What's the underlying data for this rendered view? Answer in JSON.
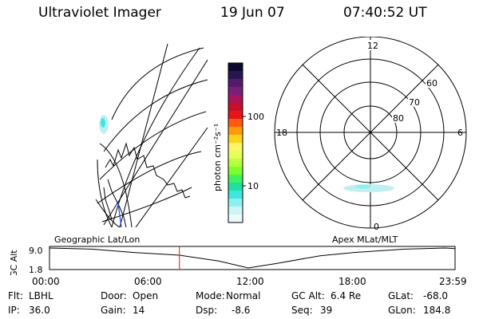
{
  "header": {
    "instrument": "Ultraviolet Imager",
    "date": "19 Jun 07",
    "time": "07:40:52 UT"
  },
  "colorbar": {
    "unit_label": "photon cm⁻²s⁻¹",
    "tick_labels": [
      "100",
      "10"
    ],
    "tick_values": [
      100,
      10
    ],
    "colors": [
      "#0b0a2e",
      "#2b1450",
      "#541a6b",
      "#7a1f78",
      "#a8155a",
      "#c80f2a",
      "#e8141a",
      "#ff5a10",
      "#ff9a0a",
      "#ffd21c",
      "#fff56a",
      "#e6ff58",
      "#b8ff3c",
      "#7cff2c",
      "#3ef25e",
      "#1fe0a2",
      "#3fe6de",
      "#8ef0f0",
      "#cdf6f6",
      "#eefafa"
    ]
  },
  "polar_plot": {
    "mlt_labels": {
      "top": "12",
      "left": "18",
      "right": "6",
      "bottom": "0"
    },
    "lat_labels": [
      "60",
      "70",
      "80"
    ],
    "emission_color": "#bfeff0"
  },
  "timeline": {
    "left_label": "Geographic Lat/Lon",
    "right_label": "Apex MLat/MLT",
    "ylabel": "GC Alt",
    "ytick_labels": [
      "9.0",
      "1.8"
    ],
    "xtick_labels": [
      "00:00",
      "06:00",
      "12:00",
      "18:00",
      "23:59"
    ],
    "marker_color": "#e03a2a",
    "chart_data": {
      "type": "line",
      "ylabel": "GC Alt",
      "x_hours": [
        0,
        2.5,
        5,
        7.68,
        10,
        11.75,
        13.5,
        16,
        18,
        21,
        23.4,
        23.98
      ],
      "y": [
        9.0,
        8.6,
        7.4,
        6.4,
        4.3,
        1.8,
        3.5,
        6.2,
        7.4,
        8.6,
        9.0,
        8.8
      ],
      "ylim": [
        1.8,
        9.0
      ],
      "xlim": [
        0,
        23.98
      ],
      "current_time_hours": 7.68
    }
  },
  "footer": {
    "rows": [
      [
        {
          "label": "Flt:",
          "value": "LBHL"
        },
        {
          "label": "Door:",
          "value": "Open"
        },
        {
          "label": "Mode:",
          "value": "Normal"
        },
        {
          "label": "GC Alt:",
          "value": "6.4 Re"
        },
        {
          "label": "GLat:",
          "value": "-68.0"
        }
      ],
      [
        {
          "label": "IP:",
          "value": "36.0"
        },
        {
          "label": "Gain:",
          "value": "14"
        },
        {
          "label": "Dsp:",
          "value": "-8.6"
        },
        {
          "label": "Seq:",
          "value": "39"
        },
        {
          "label": "GLon:",
          "value": "184.8"
        }
      ]
    ]
  }
}
